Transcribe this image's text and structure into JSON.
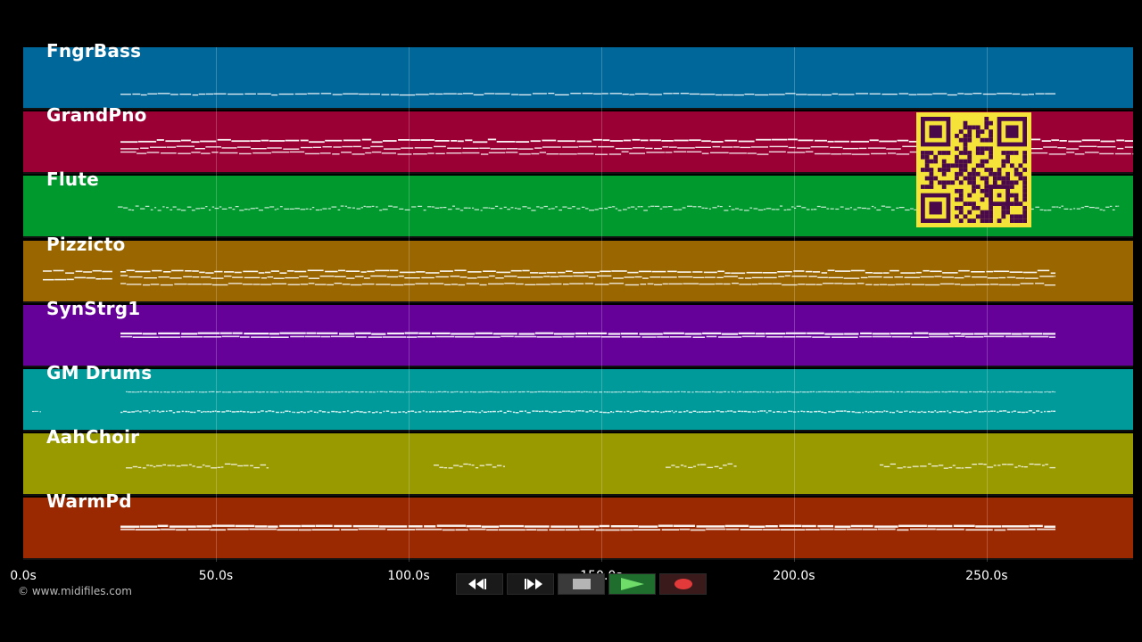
{
  "tracks": [
    {
      "name": "FngrBass",
      "color": "#00679a"
    },
    {
      "name": "GrandPno",
      "color": "#9a0033"
    },
    {
      "name": "Flute",
      "color": "#00992e"
    },
    {
      "name": "Pizzicto",
      "color": "#9a6600"
    },
    {
      "name": "SynStrg1",
      "color": "#650099"
    },
    {
      "name": "GM Drums",
      "color": "#009a9a"
    },
    {
      "name": "AahChoir",
      "color": "#999900"
    },
    {
      "name": "WarmPd",
      "color": "#9a2800"
    }
  ],
  "timeline": {
    "ticks": [
      "0.0s",
      "50.0s",
      "100.0s",
      "150.0s",
      "200.0s",
      "250.0s"
    ],
    "max_seconds": 288
  },
  "copyright": "© www.midifiles.com",
  "transport": {
    "rewind_icon": "rewind-icon",
    "forward_icon": "fast-forward-icon",
    "stop_icon": "stop-icon",
    "play_icon": "play-icon",
    "record_icon": "record-icon"
  },
  "qr_code": {
    "color": "#f6e33a",
    "dark": "#4a0a4a"
  }
}
